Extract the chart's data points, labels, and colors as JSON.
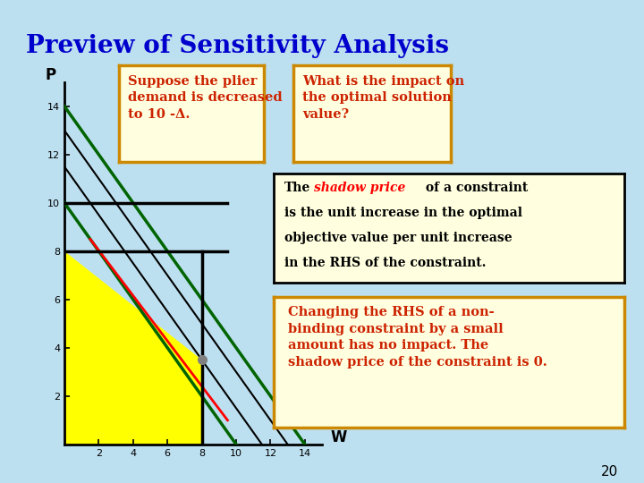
{
  "title": "Preview of Sensitivity Analysis",
  "title_color": "#0000cc",
  "title_fontsize": 20,
  "bg_color": "#bde0f0",
  "xlabel": "W",
  "ylabel": "P",
  "xlim": [
    0,
    15
  ],
  "ylim": [
    0,
    15
  ],
  "xticks": [
    2,
    4,
    6,
    8,
    10,
    12,
    14
  ],
  "yticks": [
    2,
    4,
    6,
    8,
    10,
    12,
    14
  ],
  "feasible_vertices": [
    [
      0,
      0
    ],
    [
      8,
      0
    ],
    [
      8,
      3.5
    ],
    [
      0,
      8
    ]
  ],
  "feasible_color": "yellow",
  "optimal_point": [
    8,
    3.5
  ],
  "page_number": "20",
  "box1_text": "Suppose the plier\ndemand is decreased\nto 10 -Δ.",
  "box2_text": "What is the impact on\nthe optimal solution\nvalue?",
  "box3_line1_plain": "The",
  "box3_line1_italic": "shadow price",
  "box3_line1_rest": " of a constraint",
  "box3_line2": "is the unit increase in the optimal",
  "box3_line3": "objective value per unit increase",
  "box3_line4": "in the RHS of the constraint.",
  "box4_text": "Changing the RHS of a non-\nbinding constraint by a small\namount has no impact. The\nshadow price of the constraint is 0."
}
